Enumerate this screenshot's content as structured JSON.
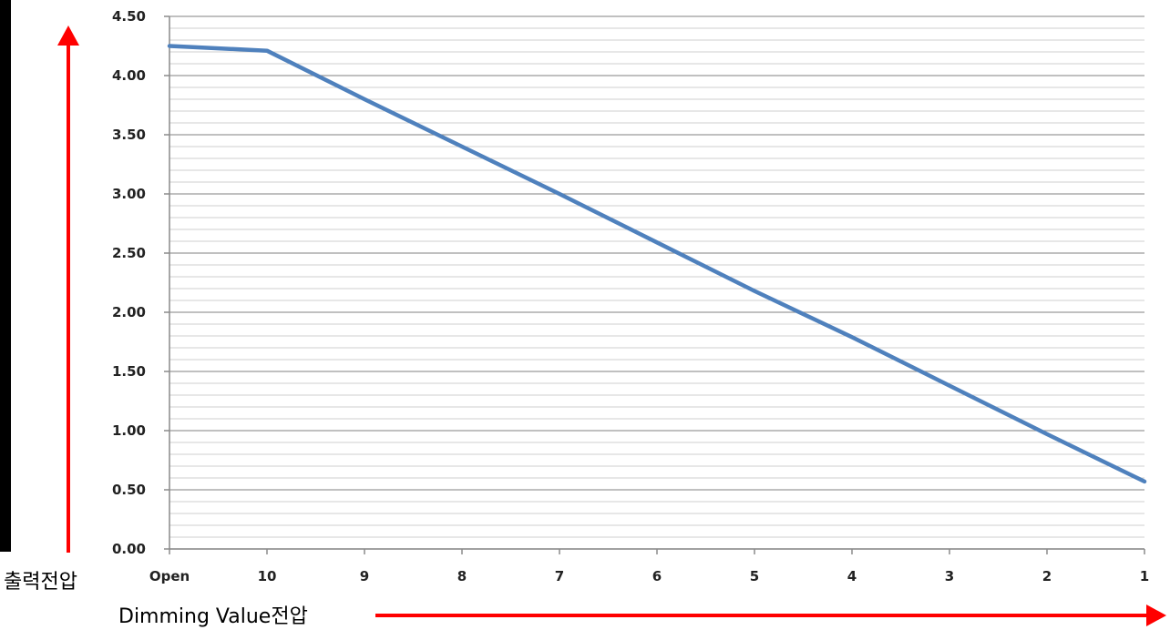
{
  "chart_data": {
    "type": "line",
    "title": "",
    "xlabel": "Dimming Value전압",
    "ylabel": "출력전압",
    "categories": [
      "Open",
      "10",
      "9",
      "8",
      "7",
      "6",
      "5",
      "4",
      "3",
      "2",
      "1"
    ],
    "series": [
      {
        "values": [
          4.25,
          4.21,
          3.8,
          3.4,
          3.0,
          2.59,
          2.18,
          1.79,
          1.38,
          0.97,
          0.57
        ]
      }
    ],
    "ylim": [
      0,
      4.5
    ],
    "ytick_step": 0.5,
    "yticks": [
      "0.00",
      "0.50",
      "1.00",
      "1.50",
      "2.00",
      "2.50",
      "3.00",
      "3.50",
      "4.00",
      "4.50"
    ],
    "minor_grid_step": 0.1,
    "grid": true,
    "line_color": "#4f81bd",
    "arrow_color": "#ff0000"
  }
}
